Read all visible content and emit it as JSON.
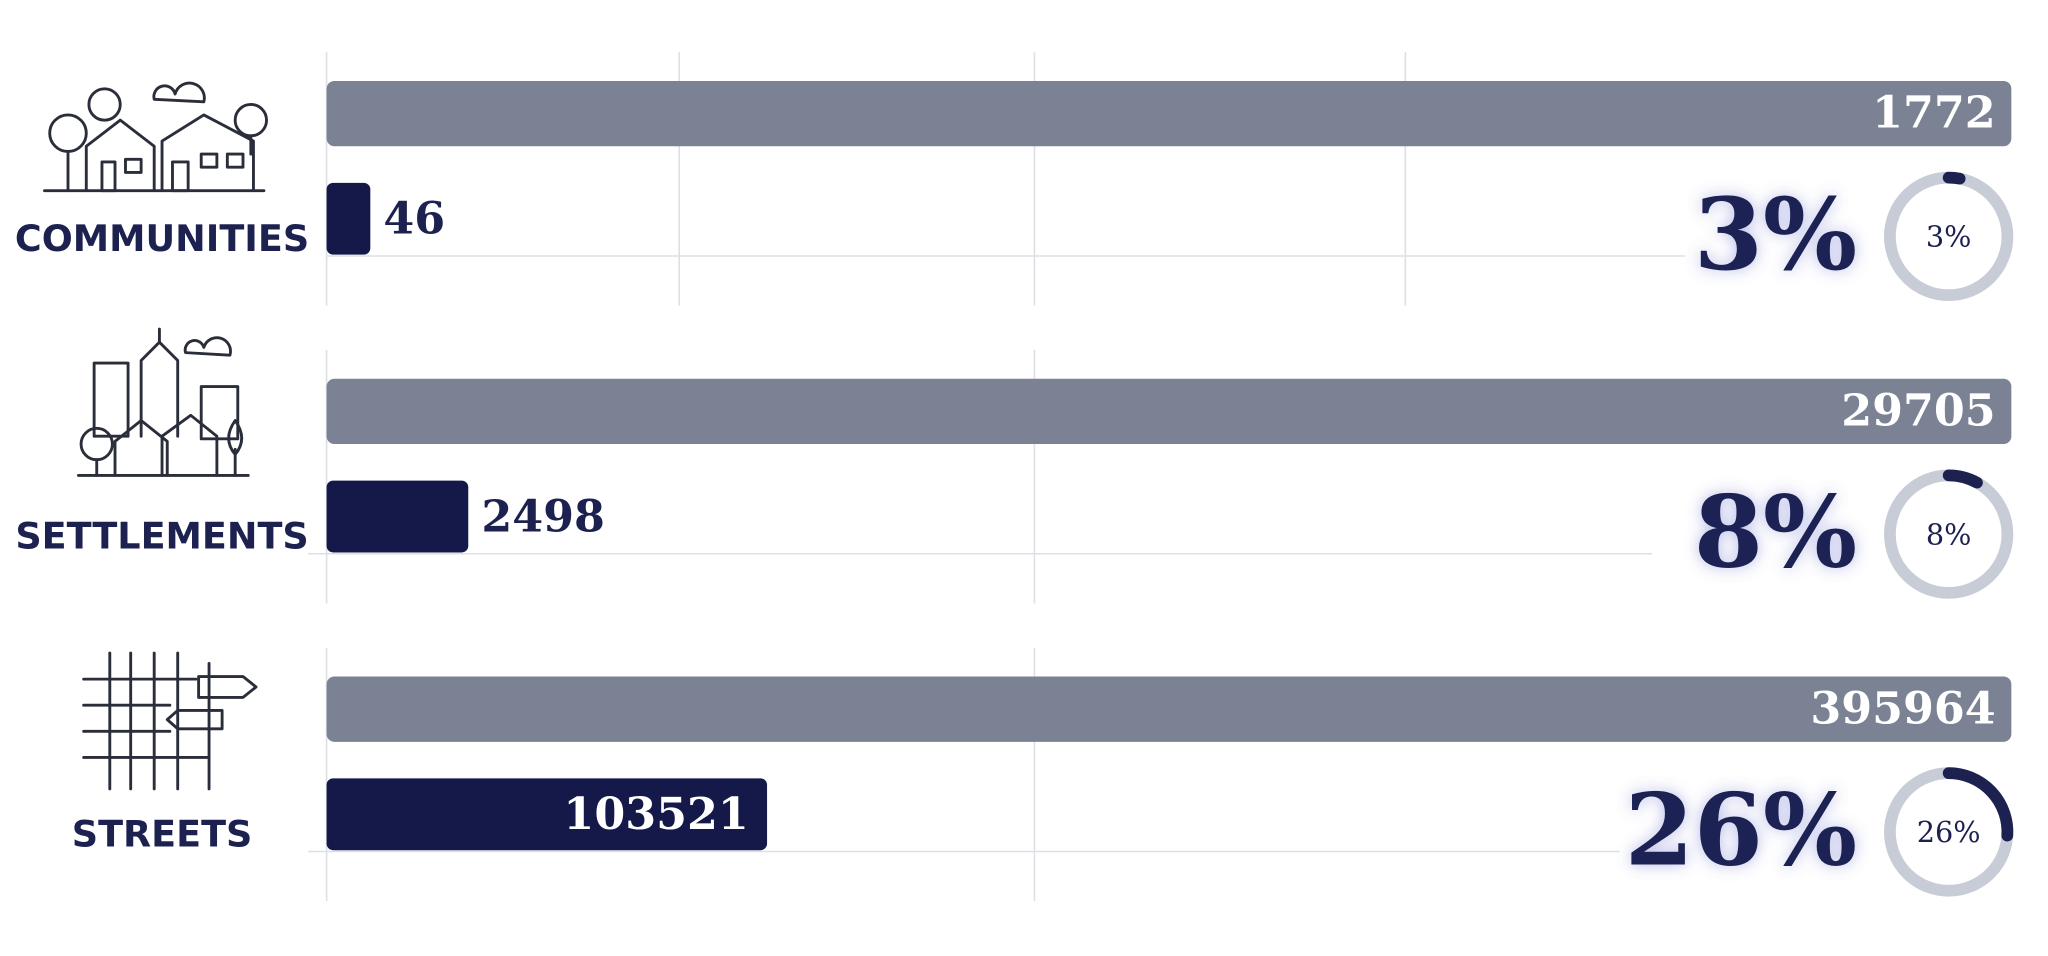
{
  "chart_data": [
    {
      "type": "bar",
      "label": "COMMUNITIES",
      "values": [
        1772,
        46
      ],
      "colors": [
        "#7a8294",
        "#15194a"
      ],
      "xlim": [
        0,
        1772
      ],
      "share": {
        "value": 3,
        "label": "3%"
      }
    },
    {
      "type": "bar",
      "label": "SETTLEMENTS",
      "values": [
        29705,
        2498
      ],
      "colors": [
        "#7a8294",
        "#15194a"
      ],
      "xlim": [
        0,
        29705
      ],
      "share": {
        "value": 8,
        "label": "8%"
      }
    },
    {
      "type": "bar",
      "label": "STREETS",
      "values": [
        395964,
        103521
      ],
      "colors": [
        "#7a8294",
        "#15194a"
      ],
      "xlim": [
        0,
        395964
      ],
      "share": {
        "value": 26,
        "label": "26%"
      }
    }
  ]
}
